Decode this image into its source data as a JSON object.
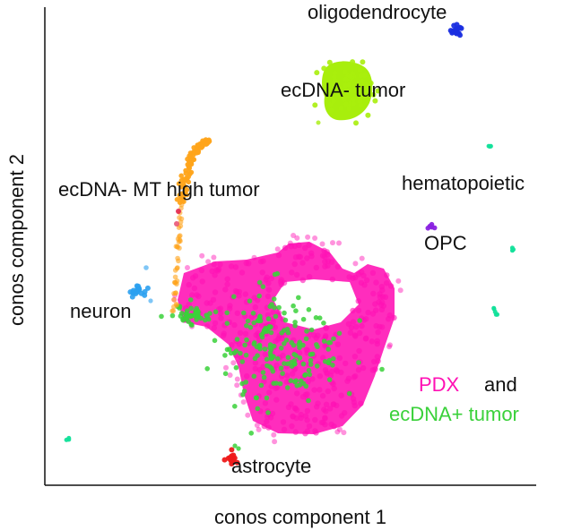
{
  "chart_data": {
    "type": "scatter",
    "xlabel": "conos component 1",
    "ylabel": "conos component 2",
    "grid": false,
    "ticks": false,
    "legend_placement": "bottom-right",
    "legend": {
      "part1": "PDX",
      "connector": "and",
      "part2": "ecDNA+ tumor"
    },
    "colors": {
      "pdx": "#ff10b4",
      "ecdna_pos_tumor": "#3ad13a",
      "ecdna_neg_tumor": "#a8ee0c",
      "ecdna_mt_high": "#ffa41a",
      "oligodendrocyte": "#1a2ee0",
      "opc": "#8a22e0",
      "hematopoietic": "#12e09a",
      "neuron": "#2aa0f0",
      "astrocyte": "#ee1a1a"
    },
    "cluster_labels": {
      "oligodendrocyte": "oligodendrocyte",
      "ecdna_neg_tumor": "ecDNA- tumor",
      "ecdna_mt_high": "ecDNA- MT high tumor",
      "hematopoietic": "hematopoietic",
      "opc": "OPC",
      "neuron": "neuron",
      "astrocyte": "astrocyte"
    }
  }
}
